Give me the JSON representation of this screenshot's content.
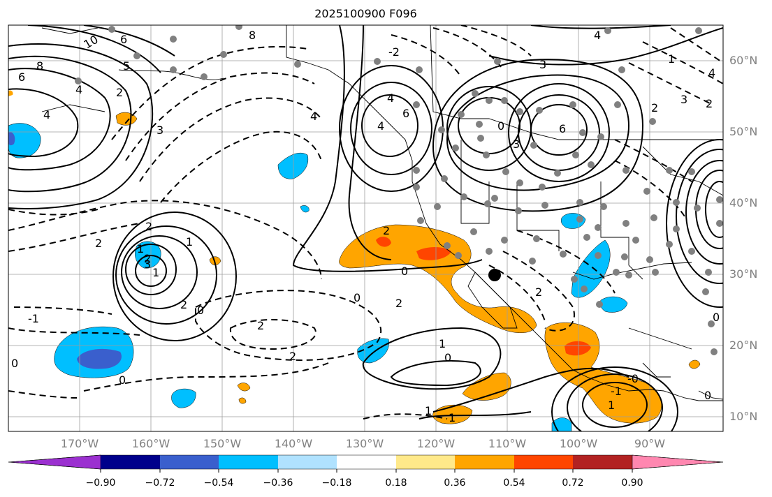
{
  "title": "2025100900 F096",
  "lat_labels": [
    "60°N",
    "50°N",
    "40°N",
    "30°N",
    "20°N",
    "10°N"
  ],
  "lon_labels": [
    "170°W",
    "160°W",
    "150°W",
    "140°W",
    "130°W",
    "120°W",
    "110°W",
    "100°W",
    "90°W"
  ],
  "colorbar": {
    "tick_labels": [
      "−0.90",
      "−0.72",
      "−0.54",
      "−0.36",
      "−0.18",
      "0.18",
      "0.36",
      "0.54",
      "0.72",
      "0.90"
    ],
    "colors": [
      "#9b30d0",
      "#00008b",
      "#3a5fcd",
      "#00bfff",
      "#b0e2ff",
      "#ffffff",
      "#ffe98a",
      "#ffa500",
      "#ff4500",
      "#b22222",
      "#ff87b0"
    ]
  },
  "contour_labels": [
    "10",
    "8",
    "6",
    "4",
    "2",
    "4",
    "6",
    "5",
    "3",
    "4",
    "-2",
    "4",
    "4",
    "6",
    "0",
    "3",
    "3",
    "6",
    "4",
    "1",
    "2",
    "2",
    "2",
    "4",
    "3",
    "2",
    "1",
    "1",
    "2",
    "1",
    "3",
    "0",
    "2",
    "-1",
    "2",
    "0",
    "0",
    "2",
    "2",
    "0",
    "0",
    "1",
    "0",
    "1",
    "1",
    "-0",
    "-1",
    "1",
    "2",
    "0",
    "0",
    "8",
    "2"
  ]
}
